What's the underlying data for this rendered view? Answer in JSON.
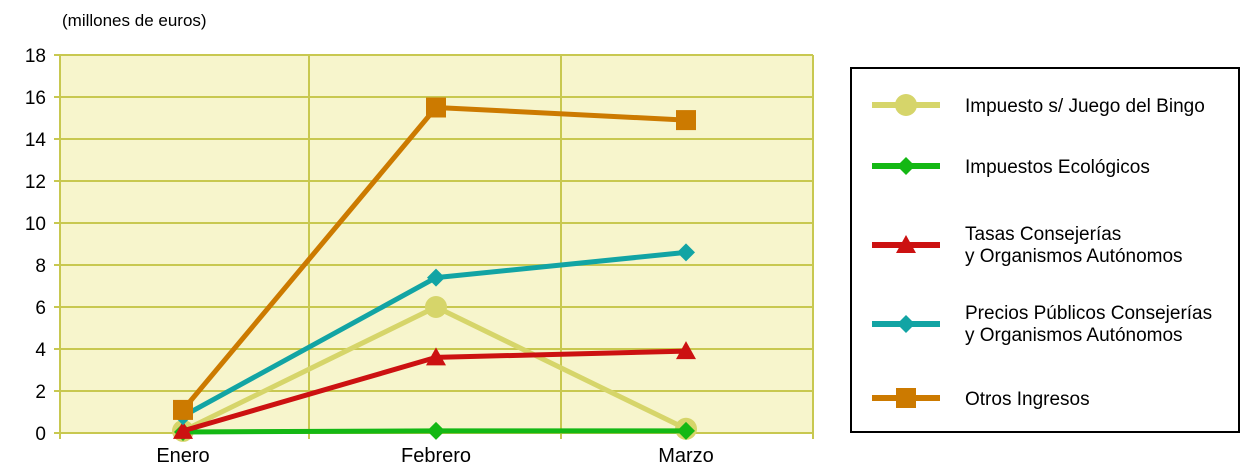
{
  "chart_data": {
    "type": "line",
    "unit_label": "(millones de euros)",
    "categories": [
      "Enero",
      "Febrero",
      "Marzo"
    ],
    "ylim": [
      0,
      18
    ],
    "yticks": [
      0,
      2,
      4,
      6,
      8,
      10,
      12,
      14,
      16,
      18
    ],
    "grid": true,
    "plot_background": "#f7f5cc",
    "grid_color": "#c8c850",
    "legend_position": "right",
    "series": [
      {
        "name": "Impuesto s/ Juego del Bingo",
        "values": [
          0.1,
          6.0,
          0.2
        ],
        "color": "#d6d56a",
        "marker": "circle"
      },
      {
        "name": "Impuestos Ecológicos",
        "values": [
          0.05,
          0.1,
          0.1
        ],
        "color": "#14b814",
        "marker": "diamond"
      },
      {
        "name": "Tasas Consejerías y Organismos Autónomos",
        "values": [
          0.1,
          3.6,
          3.9
        ],
        "color": "#cc1111",
        "marker": "triangle"
      },
      {
        "name": "Precios Públicos Consejerías y Organismos Autónomos",
        "values": [
          0.8,
          7.4,
          8.6
        ],
        "color": "#12a4a4",
        "marker": "diamond"
      },
      {
        "name": "Otros Ingresos",
        "values": [
          1.1,
          15.5,
          14.9
        ],
        "color": "#cc7a00",
        "marker": "square"
      }
    ]
  }
}
